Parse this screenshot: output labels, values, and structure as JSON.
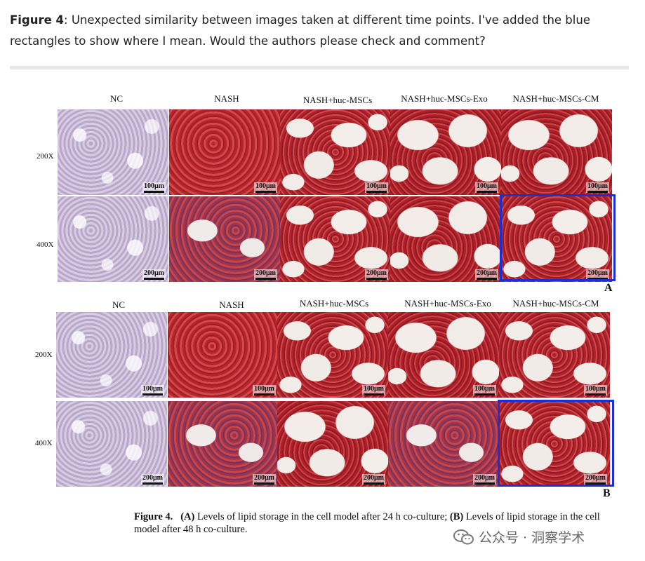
{
  "comment": {
    "label": "Figure 4",
    "text": ": Unexpected similarity between images taken at different time points. I've added the blue rectangles to show where I mean. Would the authors please check and comment?"
  },
  "figure": {
    "panel_a": {
      "letter": "A",
      "columns": [
        "NC",
        "NASH",
        "NASH+huc-MSCs",
        "NASH+huc-MSCs-Exo",
        "NASH+huc-MSCs-CM"
      ],
      "rows": [
        {
          "label": "200X",
          "scale": "100μm"
        },
        {
          "label": "400X",
          "scale": "200μm"
        }
      ]
    },
    "panel_b": {
      "letter": "B",
      "columns": [
        "NC",
        "NASH",
        "NASH+huc-MSCs",
        "NASH+huc-MSCs-Exo",
        "NASH+huc-MSCs-CM"
      ],
      "rows": [
        {
          "label": "200X",
          "scale": "100μm"
        },
        {
          "label": "400X",
          "scale": "200μm"
        }
      ]
    },
    "caption": {
      "label": "Figure 4.",
      "a_marker": "(A)",
      "a_text": " Levels of lipid storage in the cell model after 24 h co-culture; ",
      "b_marker": "(B)",
      "b_text": " Levels of lipid storage in the cell model after 48 h co-culture."
    },
    "highlight_color": "#1a2fd6"
  },
  "watermark": {
    "text": "公众号 · 洞察学术",
    "icon": "wechat-icon"
  }
}
